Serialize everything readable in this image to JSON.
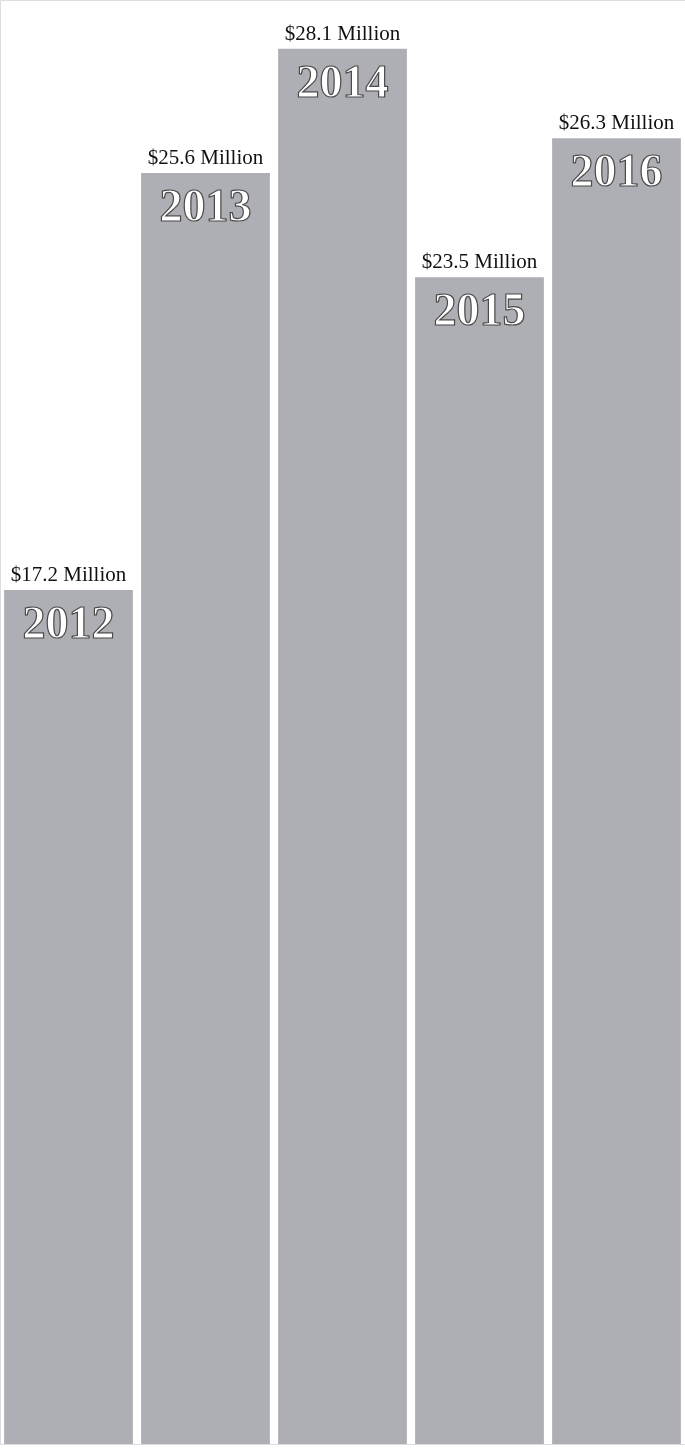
{
  "chart_data": {
    "type": "bar",
    "categories": [
      "2012",
      "2013",
      "2014",
      "2015",
      "2016"
    ],
    "values": [
      17.2,
      25.6,
      28.1,
      23.5,
      26.3
    ],
    "value_labels": [
      "$17.2 Million",
      "$25.6 Million",
      "$28.1 Million",
      "$23.5 Million",
      "$26.3 Million"
    ],
    "color": "#aeafb4",
    "grid": false,
    "legend": false
  }
}
